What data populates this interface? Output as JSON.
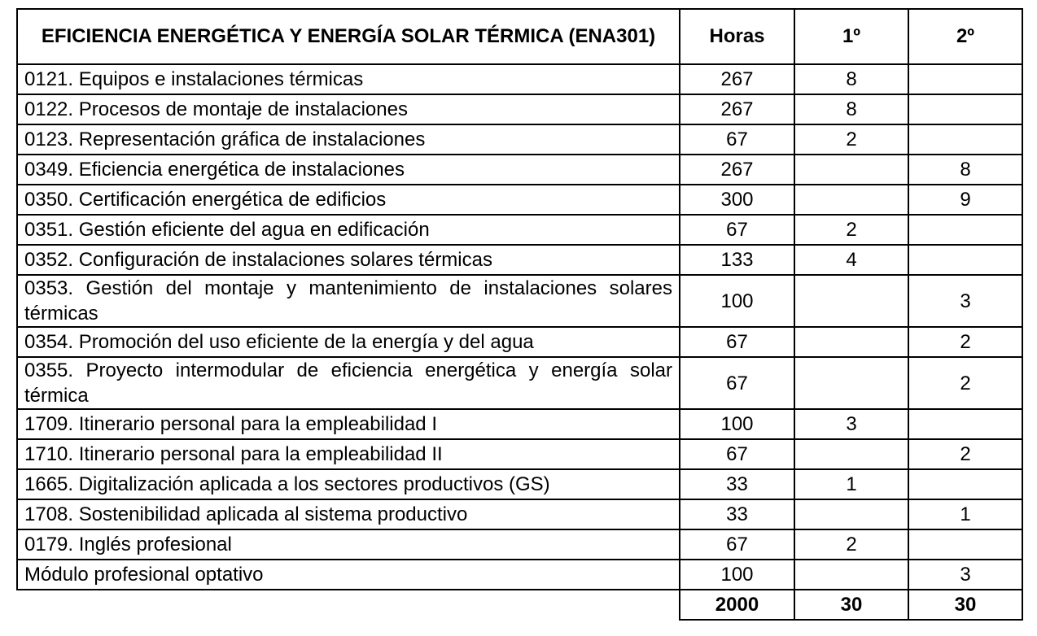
{
  "header": {
    "title": "EFICIENCIA ENERGÉTICA Y ENERGÍA SOLAR TÉRMICA (ENA301)",
    "hours": "Horas",
    "first": "1º",
    "second": "2º"
  },
  "rows": [
    {
      "name": "0121. Equipos e instalaciones térmicas",
      "hours": "267",
      "first": "8",
      "second": ""
    },
    {
      "name": "0122. Procesos de montaje de instalaciones",
      "hours": "267",
      "first": "8",
      "second": ""
    },
    {
      "name": "0123. Representación gráfica de instalaciones",
      "hours": "67",
      "first": "2",
      "second": ""
    },
    {
      "name": "0349. Eficiencia energética de instalaciones",
      "hours": "267",
      "first": "",
      "second": "8"
    },
    {
      "name": "0350. Certificación energética de edificios",
      "hours": "300",
      "first": "",
      "second": "9"
    },
    {
      "name": "0351. Gestión eficiente del agua en edificación",
      "hours": "67",
      "first": "2",
      "second": ""
    },
    {
      "name": "0352. Configuración de instalaciones solares térmicas",
      "hours": "133",
      "first": "4",
      "second": ""
    },
    {
      "name": "0353. Gestión del montaje y mantenimiento de instalaciones solares térmicas",
      "hours": "100",
      "first": "",
      "second": "3"
    },
    {
      "name": "0354. Promoción del uso eficiente de la energía y del agua",
      "hours": "67",
      "first": "",
      "second": "2"
    },
    {
      "name": "0355. Proyecto intermodular de eficiencia energética y energía solar térmica",
      "hours": "67",
      "first": "",
      "second": "2"
    },
    {
      "name": "1709. Itinerario personal para la empleabilidad I",
      "hours": "100",
      "first": "3",
      "second": ""
    },
    {
      "name": "1710. Itinerario personal para la empleabilidad II",
      "hours": "67",
      "first": "",
      "second": "2"
    },
    {
      "name": "1665. Digitalización aplicada a los sectores productivos (GS)",
      "hours": "33",
      "first": "1",
      "second": ""
    },
    {
      "name": "1708. Sostenibilidad aplicada al sistema productivo",
      "hours": "33",
      "first": "",
      "second": "1"
    },
    {
      "name": "0179. Inglés profesional",
      "hours": "67",
      "first": "2",
      "second": ""
    },
    {
      "name": "Módulo profesional optativo",
      "hours": "100",
      "first": "",
      "second": "3"
    }
  ],
  "total": {
    "hours": "2000",
    "first": "30",
    "second": "30"
  }
}
